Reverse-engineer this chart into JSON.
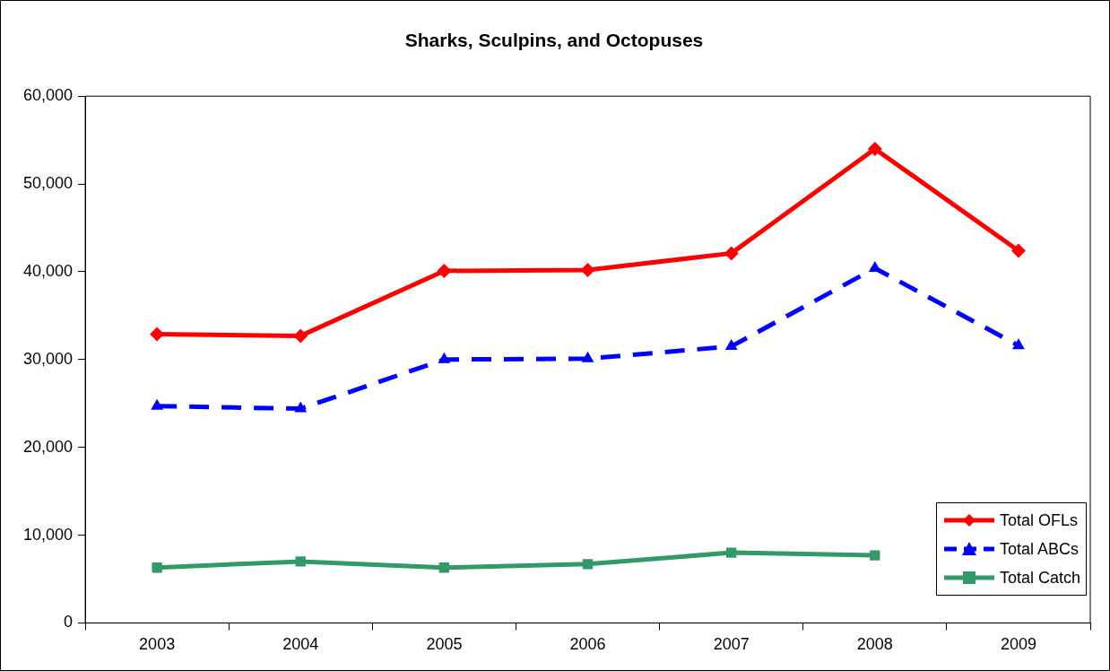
{
  "chart_data": {
    "type": "line",
    "title": "Sharks, Sculpins, and Octopuses",
    "categories": [
      "2003",
      "2004",
      "2005",
      "2006",
      "2007",
      "2008",
      "2009"
    ],
    "series": [
      {
        "name": "Total OFLs",
        "color": "#ff0000",
        "marker": "diamond",
        "line_style": "solid",
        "values": [
          32900,
          32700,
          40100,
          40200,
          42100,
          54000,
          42400
        ]
      },
      {
        "name": "Total ABCs",
        "color": "#0000ff",
        "marker": "triangle",
        "line_style": "dashed",
        "values": [
          24700,
          24400,
          30000,
          30100,
          31500,
          40400,
          31600
        ]
      },
      {
        "name": "Total Catch",
        "color": "#339966",
        "marker": "square",
        "line_style": "solid",
        "values": [
          6300,
          7000,
          6300,
          6700,
          8000,
          7700,
          null
        ]
      }
    ],
    "ylim": [
      0,
      60000
    ],
    "yticks": [
      0,
      {
        "value": 10000,
        "label": "10,000"
      },
      {
        "value": 20000,
        "label": "20,000"
      },
      {
        "value": 30000,
        "label": "30,000"
      },
      {
        "value": 40000,
        "label": "40,000"
      },
      {
        "value": 50000,
        "label": "50,000"
      },
      {
        "value": 60000,
        "label": "60,000"
      }
    ],
    "grid": false,
    "legend": "bottom right"
  }
}
